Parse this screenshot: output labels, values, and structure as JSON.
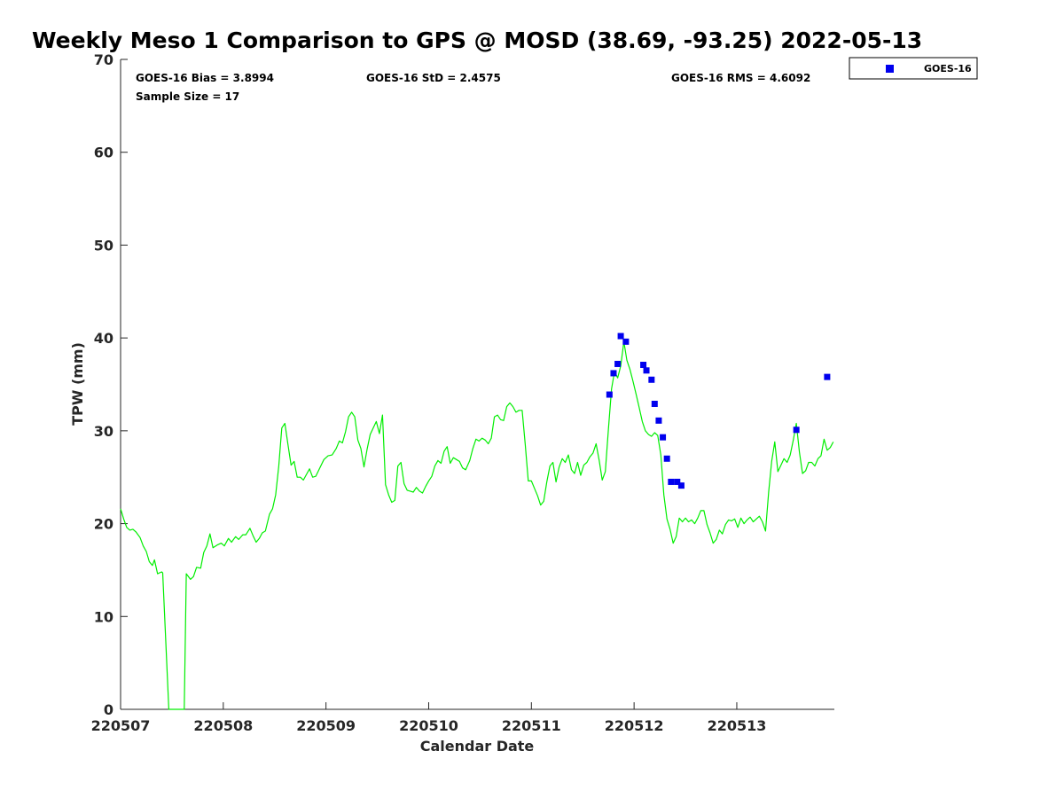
{
  "chart_data": {
    "type": "line",
    "title": "Weekly Meso 1 Comparison to GPS @ MOSD (38.69, -93.25) 2022-05-13",
    "xlabel": "Calendar Date",
    "ylabel": "TPW (mm)",
    "xlim": [
      220507.0,
      220513.95
    ],
    "ylim": [
      0,
      70
    ],
    "yticks": [
      0,
      10,
      20,
      30,
      40,
      50,
      60,
      70
    ],
    "xticks": [
      {
        "value": 220507,
        "label": "220507"
      },
      {
        "value": 220508,
        "label": "220508"
      },
      {
        "value": 220509,
        "label": "220509"
      },
      {
        "value": 220510,
        "label": "220510"
      },
      {
        "value": 220511,
        "label": "220511"
      },
      {
        "value": 220512,
        "label": "220512"
      },
      {
        "value": 220513,
        "label": "220513"
      }
    ],
    "grid": false,
    "legend_position": "outside-top-right",
    "stats": {
      "bias": "GOES-16 Bias = 3.8994",
      "std": "GOES-16 StD = 2.4575",
      "rms": "GOES-16 RMS = 4.6092",
      "sample": "Sample Size = 17"
    },
    "series": [
      {
        "kind": "line",
        "color": "#00ee00",
        "points": [
          [
            220507.0,
            21.6
          ],
          [
            220507.03,
            20.5
          ],
          [
            220507.06,
            19.6
          ],
          [
            220507.09,
            19.3
          ],
          [
            220507.12,
            19.4
          ],
          [
            220507.15,
            19.1
          ],
          [
            220507.19,
            18.5
          ],
          [
            220507.22,
            17.6
          ],
          [
            220507.25,
            17.0
          ],
          [
            220507.28,
            15.9
          ],
          [
            220507.31,
            15.5
          ],
          [
            220507.33,
            16.1
          ],
          [
            220507.36,
            14.6
          ],
          [
            220507.4,
            14.8
          ],
          [
            220507.41,
            14.7
          ],
          [
            220507.47,
            0.0
          ],
          [
            220507.62,
            0.0
          ],
          [
            220507.64,
            14.6
          ],
          [
            220507.68,
            14.0
          ],
          [
            220507.71,
            14.3
          ],
          [
            220507.74,
            15.3
          ],
          [
            220507.78,
            15.2
          ],
          [
            220507.81,
            16.9
          ],
          [
            220507.84,
            17.6
          ],
          [
            220507.87,
            18.9
          ],
          [
            220507.9,
            17.4
          ],
          [
            220507.94,
            17.7
          ],
          [
            220507.98,
            17.9
          ],
          [
            220508.01,
            17.6
          ],
          [
            220508.05,
            18.4
          ],
          [
            220508.08,
            18.0
          ],
          [
            220508.12,
            18.6
          ],
          [
            220508.15,
            18.3
          ],
          [
            220508.19,
            18.8
          ],
          [
            220508.22,
            18.8
          ],
          [
            220508.26,
            19.5
          ],
          [
            220508.29,
            18.7
          ],
          [
            220508.32,
            18.0
          ],
          [
            220508.35,
            18.4
          ],
          [
            220508.38,
            19.0
          ],
          [
            220508.41,
            19.2
          ],
          [
            220508.45,
            21.0
          ],
          [
            220508.48,
            21.6
          ],
          [
            220508.51,
            23.1
          ],
          [
            220508.54,
            26.2
          ],
          [
            220508.57,
            30.3
          ],
          [
            220508.6,
            30.8
          ],
          [
            220508.63,
            28.5
          ],
          [
            220508.66,
            26.3
          ],
          [
            220508.69,
            26.7
          ],
          [
            220508.72,
            25.0
          ],
          [
            220508.75,
            25.0
          ],
          [
            220508.78,
            24.7
          ],
          [
            220508.81,
            25.3
          ],
          [
            220508.84,
            25.9
          ],
          [
            220508.87,
            25.0
          ],
          [
            220508.9,
            25.1
          ],
          [
            220508.94,
            26.0
          ],
          [
            220508.98,
            26.9
          ],
          [
            220509.02,
            27.3
          ],
          [
            220509.06,
            27.4
          ],
          [
            220509.1,
            28.1
          ],
          [
            220509.13,
            28.9
          ],
          [
            220509.16,
            28.7
          ],
          [
            220509.19,
            29.9
          ],
          [
            220509.22,
            31.5
          ],
          [
            220509.25,
            32.0
          ],
          [
            220509.28,
            31.5
          ],
          [
            220509.31,
            29.0
          ],
          [
            220509.34,
            28.1
          ],
          [
            220509.37,
            26.1
          ],
          [
            220509.4,
            28.0
          ],
          [
            220509.43,
            29.6
          ],
          [
            220509.46,
            30.3
          ],
          [
            220509.49,
            31.0
          ],
          [
            220509.52,
            29.7
          ],
          [
            220509.55,
            31.7
          ],
          [
            220509.58,
            24.2
          ],
          [
            220509.61,
            23.1
          ],
          [
            220509.64,
            22.3
          ],
          [
            220509.67,
            22.5
          ],
          [
            220509.7,
            26.2
          ],
          [
            220509.73,
            26.6
          ],
          [
            220509.76,
            24.3
          ],
          [
            220509.79,
            23.6
          ],
          [
            220509.82,
            23.5
          ],
          [
            220509.85,
            23.4
          ],
          [
            220509.88,
            23.9
          ],
          [
            220509.91,
            23.5
          ],
          [
            220509.94,
            23.3
          ],
          [
            220509.97,
            24.0
          ],
          [
            220510.0,
            24.6
          ],
          [
            220510.03,
            25.1
          ],
          [
            220510.06,
            26.2
          ],
          [
            220510.09,
            26.8
          ],
          [
            220510.12,
            26.5
          ],
          [
            220510.15,
            27.8
          ],
          [
            220510.18,
            28.3
          ],
          [
            220510.21,
            26.5
          ],
          [
            220510.24,
            27.1
          ],
          [
            220510.27,
            26.9
          ],
          [
            220510.3,
            26.7
          ],
          [
            220510.33,
            26.0
          ],
          [
            220510.36,
            25.8
          ],
          [
            220510.4,
            26.8
          ],
          [
            220510.43,
            28.1
          ],
          [
            220510.46,
            29.1
          ],
          [
            220510.49,
            28.9
          ],
          [
            220510.52,
            29.2
          ],
          [
            220510.55,
            29.0
          ],
          [
            220510.58,
            28.6
          ],
          [
            220510.61,
            29.2
          ],
          [
            220510.64,
            31.5
          ],
          [
            220510.67,
            31.7
          ],
          [
            220510.7,
            31.2
          ],
          [
            220510.73,
            31.1
          ],
          [
            220510.76,
            32.6
          ],
          [
            220510.79,
            33.0
          ],
          [
            220510.82,
            32.6
          ],
          [
            220510.85,
            32.0
          ],
          [
            220510.88,
            32.2
          ],
          [
            220510.91,
            32.2
          ],
          [
            220510.94,
            28.5
          ],
          [
            220510.97,
            24.6
          ],
          [
            220511.0,
            24.6
          ],
          [
            220511.03,
            23.8
          ],
          [
            220511.06,
            23.0
          ],
          [
            220511.09,
            22.0
          ],
          [
            220511.12,
            22.4
          ],
          [
            220511.15,
            24.5
          ],
          [
            220511.18,
            26.2
          ],
          [
            220511.21,
            26.6
          ],
          [
            220511.24,
            24.5
          ],
          [
            220511.27,
            26.1
          ],
          [
            220511.3,
            27.0
          ],
          [
            220511.33,
            26.6
          ],
          [
            220511.36,
            27.4
          ],
          [
            220511.39,
            25.8
          ],
          [
            220511.42,
            25.4
          ],
          [
            220511.45,
            26.6
          ],
          [
            220511.48,
            25.2
          ],
          [
            220511.51,
            26.3
          ],
          [
            220511.54,
            26.6
          ],
          [
            220511.57,
            27.2
          ],
          [
            220511.6,
            27.6
          ],
          [
            220511.63,
            28.6
          ],
          [
            220511.66,
            26.8
          ],
          [
            220511.69,
            24.7
          ],
          [
            220511.72,
            25.6
          ],
          [
            220511.75,
            30.2
          ],
          [
            220511.78,
            34.5
          ],
          [
            220511.81,
            36.4
          ],
          [
            220511.84,
            35.7
          ],
          [
            220511.87,
            37.0
          ],
          [
            220511.9,
            39.6
          ],
          [
            220511.93,
            37.6
          ],
          [
            220511.96,
            36.6
          ],
          [
            220511.99,
            35.3
          ],
          [
            220512.02,
            33.9
          ],
          [
            220512.05,
            32.5
          ],
          [
            220512.08,
            31.0
          ],
          [
            220512.11,
            30.0
          ],
          [
            220512.14,
            29.6
          ],
          [
            220512.17,
            29.4
          ],
          [
            220512.2,
            29.8
          ],
          [
            220512.23,
            29.5
          ],
          [
            220512.26,
            27.4
          ],
          [
            220512.29,
            23.1
          ],
          [
            220512.32,
            20.5
          ],
          [
            220512.35,
            19.4
          ],
          [
            220512.38,
            17.9
          ],
          [
            220512.41,
            18.6
          ],
          [
            220512.44,
            20.6
          ],
          [
            220512.47,
            20.2
          ],
          [
            220512.5,
            20.6
          ],
          [
            220512.53,
            20.2
          ],
          [
            220512.56,
            20.4
          ],
          [
            220512.59,
            20.0
          ],
          [
            220512.62,
            20.6
          ],
          [
            220512.65,
            21.4
          ],
          [
            220512.68,
            21.4
          ],
          [
            220512.71,
            19.9
          ],
          [
            220512.74,
            19.0
          ],
          [
            220512.77,
            17.9
          ],
          [
            220512.8,
            18.3
          ],
          [
            220512.83,
            19.3
          ],
          [
            220512.86,
            18.9
          ],
          [
            220512.89,
            19.9
          ],
          [
            220512.92,
            20.4
          ],
          [
            220512.95,
            20.3
          ],
          [
            220512.98,
            20.5
          ],
          [
            220513.01,
            19.6
          ],
          [
            220513.04,
            20.6
          ],
          [
            220513.07,
            20.0
          ],
          [
            220513.1,
            20.4
          ],
          [
            220513.13,
            20.7
          ],
          [
            220513.16,
            20.2
          ],
          [
            220513.19,
            20.5
          ],
          [
            220513.22,
            20.8
          ],
          [
            220513.25,
            20.2
          ],
          [
            220513.28,
            19.2
          ],
          [
            220513.31,
            23.4
          ],
          [
            220513.34,
            26.7
          ],
          [
            220513.37,
            28.8
          ],
          [
            220513.4,
            25.6
          ],
          [
            220513.43,
            26.3
          ],
          [
            220513.46,
            27.0
          ],
          [
            220513.49,
            26.6
          ],
          [
            220513.52,
            27.4
          ],
          [
            220513.55,
            29.0
          ],
          [
            220513.58,
            30.8
          ],
          [
            220513.61,
            27.7
          ],
          [
            220513.64,
            25.4
          ],
          [
            220513.67,
            25.7
          ],
          [
            220513.7,
            26.6
          ],
          [
            220513.73,
            26.6
          ],
          [
            220513.76,
            26.2
          ],
          [
            220513.79,
            27.0
          ],
          [
            220513.82,
            27.3
          ],
          [
            220513.85,
            29.1
          ],
          [
            220513.88,
            27.9
          ],
          [
            220513.91,
            28.2
          ],
          [
            220513.94,
            28.8
          ]
        ]
      },
      {
        "name": "GOES-16",
        "kind": "scatter",
        "color": "#0000ee",
        "points": [
          [
            220511.76,
            33.9
          ],
          [
            220511.8,
            36.2
          ],
          [
            220511.84,
            37.2
          ],
          [
            220511.87,
            40.2
          ],
          [
            220511.92,
            39.6
          ],
          [
            220512.09,
            37.1
          ],
          [
            220512.12,
            36.5
          ],
          [
            220512.17,
            35.5
          ],
          [
            220512.2,
            32.9
          ],
          [
            220512.24,
            31.1
          ],
          [
            220512.28,
            29.3
          ],
          [
            220512.32,
            27.0
          ],
          [
            220512.36,
            24.5
          ],
          [
            220512.42,
            24.5
          ],
          [
            220512.46,
            24.1
          ],
          [
            220513.58,
            30.1
          ],
          [
            220513.88,
            35.8
          ]
        ]
      }
    ]
  }
}
